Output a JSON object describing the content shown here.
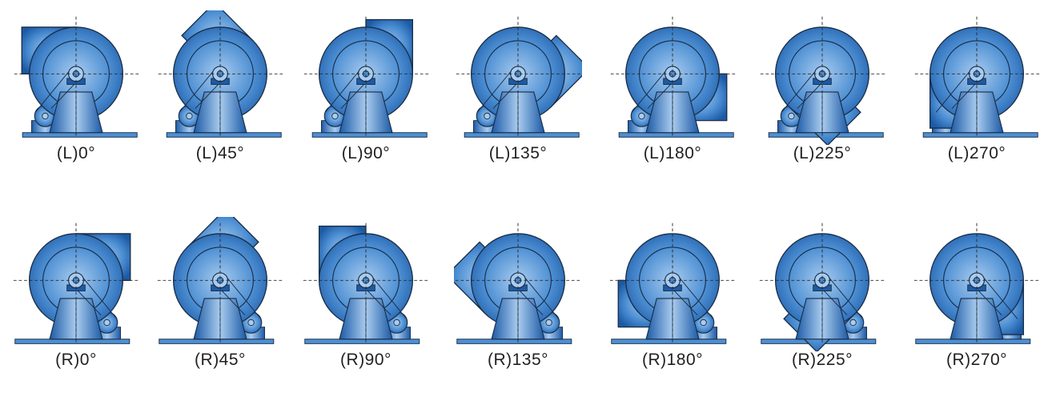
{
  "colors": {
    "body_light": "#a9ccef",
    "body_mid": "#4d8fd3",
    "body_dark": "#1c5aa6",
    "outline": "#1a2d45",
    "guide": "#2b2b2b",
    "label": "#222222"
  },
  "rows": [
    {
      "side": "L",
      "items": [
        {
          "label": "(L)0°",
          "angle": 0
        },
        {
          "label": "(L)45°",
          "angle": 45
        },
        {
          "label": "(L)90°",
          "angle": 90
        },
        {
          "label": "(L)135°",
          "angle": 135
        },
        {
          "label": "(L)180°",
          "angle": 180
        },
        {
          "label": "(L)225°",
          "angle": 225
        },
        {
          "label": "(L)270°",
          "angle": 270
        }
      ]
    },
    {
      "side": "R",
      "items": [
        {
          "label": "(R)0°",
          "angle": 0
        },
        {
          "label": "(R)45°",
          "angle": 45
        },
        {
          "label": "(R)90°",
          "angle": 90
        },
        {
          "label": "(R)135°",
          "angle": 135
        },
        {
          "label": "(R)180°",
          "angle": 180
        },
        {
          "label": "(R)225°",
          "angle": 225
        },
        {
          "label": "(R)270°",
          "angle": 270
        }
      ]
    }
  ]
}
